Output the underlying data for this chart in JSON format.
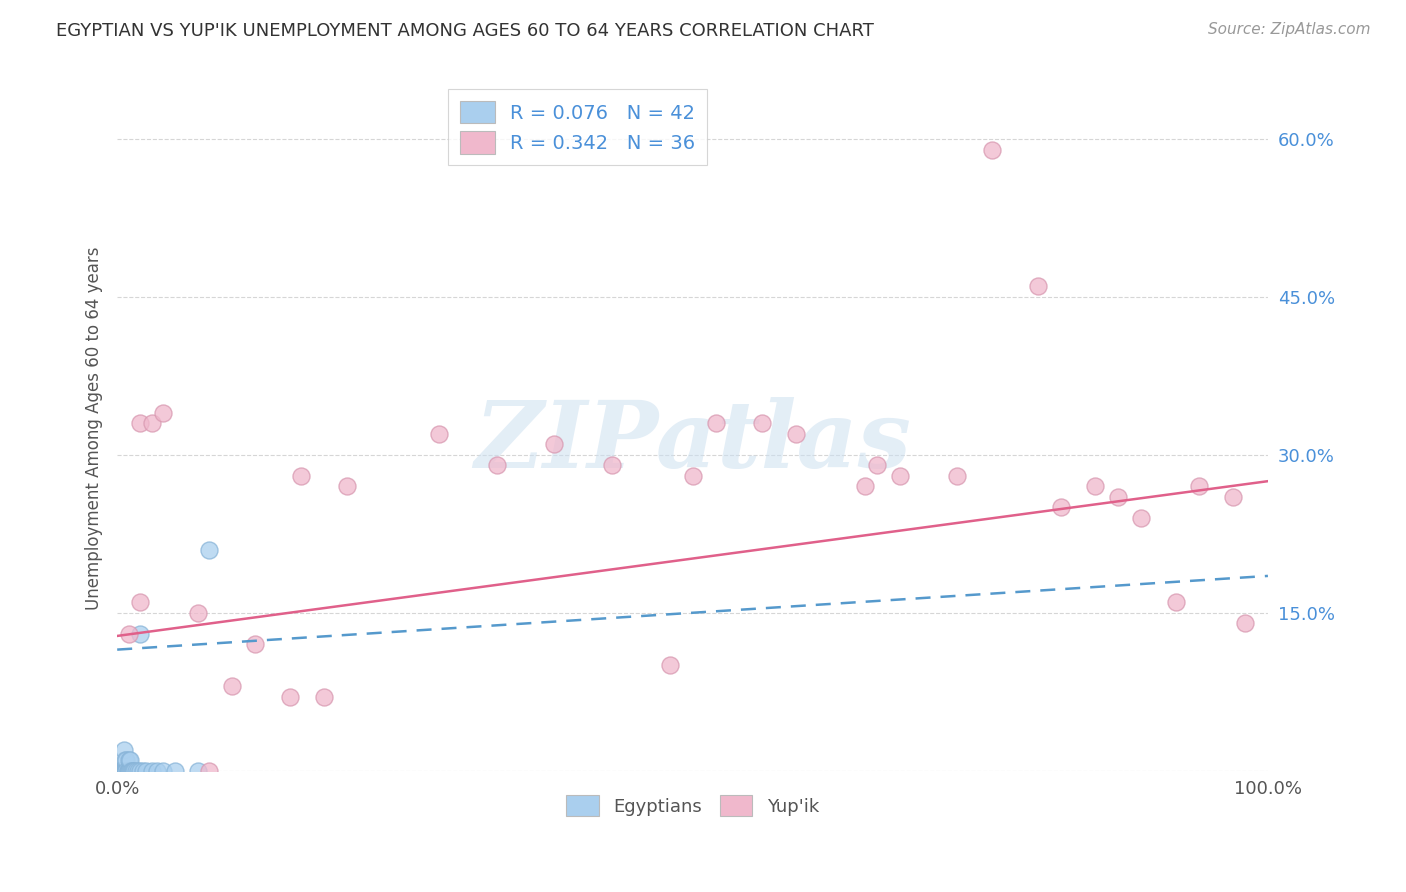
{
  "title": "EGYPTIAN VS YUP'IK UNEMPLOYMENT AMONG AGES 60 TO 64 YEARS CORRELATION CHART",
  "source": "Source: ZipAtlas.com",
  "ylabel": "Unemployment Among Ages 60 to 64 years",
  "xlim": [
    0,
    1.0
  ],
  "ylim": [
    0,
    0.65
  ],
  "xtick_positions": [
    0.0,
    0.1,
    0.2,
    0.3,
    0.4,
    0.5,
    0.6,
    0.7,
    0.8,
    0.9,
    1.0
  ],
  "xticklabels": [
    "0.0%",
    "",
    "",
    "",
    "",
    "",
    "",
    "",
    "",
    "",
    "100.0%"
  ],
  "ytick_positions": [
    0.0,
    0.15,
    0.3,
    0.45,
    0.6
  ],
  "ytick_labels": [
    "",
    "15.0%",
    "30.0%",
    "45.0%",
    "60.0%"
  ],
  "egyptian_color": "#aacfee",
  "egyptian_edge_color": "#88b4d8",
  "yupik_color": "#f0b8cc",
  "yupik_edge_color": "#d898b0",
  "egyptian_line_color": "#5599cc",
  "yupik_line_color": "#e0608a",
  "egyptian_R": 0.076,
  "egyptian_N": 42,
  "yupik_R": 0.342,
  "yupik_N": 36,
  "watermark_text": "ZIPatlas",
  "watermark_color": "#cce0f0",
  "egyptian_x": [
    0.002,
    0.003,
    0.003,
    0.004,
    0.004,
    0.004,
    0.005,
    0.005,
    0.005,
    0.005,
    0.006,
    0.006,
    0.006,
    0.007,
    0.007,
    0.007,
    0.008,
    0.008,
    0.008,
    0.009,
    0.009,
    0.01,
    0.01,
    0.01,
    0.011,
    0.011,
    0.012,
    0.013,
    0.014,
    0.015,
    0.016,
    0.018,
    0.02,
    0.022,
    0.025,
    0.03,
    0.035,
    0.04,
    0.05,
    0.07,
    0.02,
    0.08
  ],
  "egyptian_y": [
    0.0,
    0.0,
    0.0,
    0.0,
    0.0,
    0.0,
    0.0,
    0.0,
    0.0,
    0.0,
    0.0,
    0.0,
    0.02,
    0.0,
    0.01,
    0.0,
    0.0,
    0.01,
    0.0,
    0.0,
    0.0,
    0.0,
    0.01,
    0.0,
    0.0,
    0.01,
    0.0,
    0.0,
    0.0,
    0.0,
    0.0,
    0.0,
    0.0,
    0.0,
    0.0,
    0.0,
    0.0,
    0.0,
    0.0,
    0.0,
    0.13,
    0.21
  ],
  "yupik_x": [
    0.01,
    0.02,
    0.02,
    0.03,
    0.04,
    0.07,
    0.08,
    0.1,
    0.12,
    0.15,
    0.16,
    0.18,
    0.2,
    0.28,
    0.33,
    0.38,
    0.43,
    0.48,
    0.5,
    0.52,
    0.56,
    0.59,
    0.65,
    0.66,
    0.68,
    0.73,
    0.76,
    0.8,
    0.82,
    0.85,
    0.87,
    0.89,
    0.92,
    0.94,
    0.97,
    0.98
  ],
  "yupik_y": [
    0.13,
    0.16,
    0.33,
    0.33,
    0.34,
    0.15,
    0.0,
    0.08,
    0.12,
    0.07,
    0.28,
    0.07,
    0.27,
    0.32,
    0.29,
    0.31,
    0.29,
    0.1,
    0.28,
    0.33,
    0.33,
    0.32,
    0.27,
    0.29,
    0.28,
    0.28,
    0.59,
    0.46,
    0.25,
    0.27,
    0.26,
    0.24,
    0.16,
    0.27,
    0.26,
    0.14
  ],
  "eg_line_x0": 0.0,
  "eg_line_x1": 1.0,
  "eg_line_y0": 0.115,
  "eg_line_y1": 0.185,
  "yu_line_x0": 0.0,
  "yu_line_x1": 1.0,
  "yu_line_y0": 0.128,
  "yu_line_y1": 0.275
}
